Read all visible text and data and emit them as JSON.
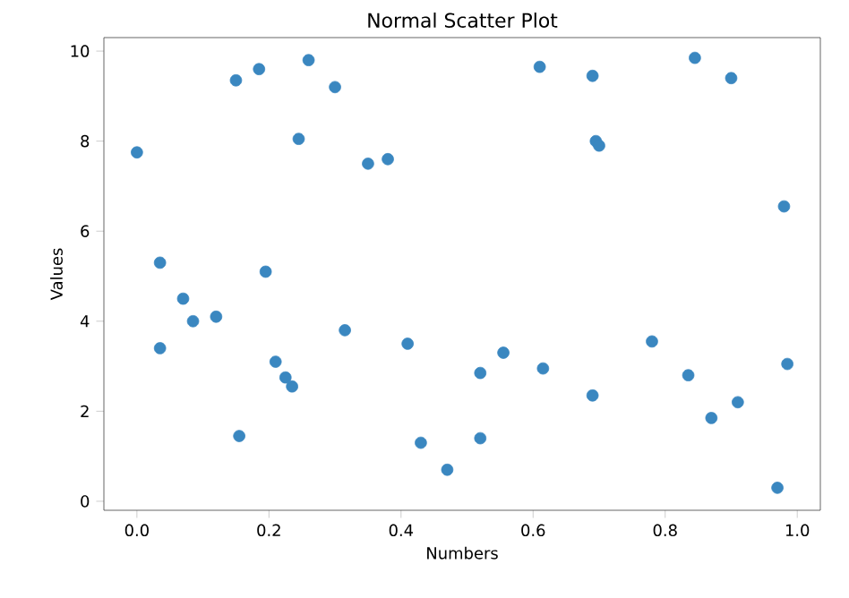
{
  "chart_data": {
    "type": "scatter",
    "title": "Normal Scatter Plot",
    "xlabel": "Numbers",
    "ylabel": "Values",
    "x": [
      0.0,
      0.035,
      0.035,
      0.07,
      0.085,
      0.12,
      0.15,
      0.155,
      0.185,
      0.195,
      0.21,
      0.225,
      0.235,
      0.245,
      0.26,
      0.3,
      0.315,
      0.35,
      0.38,
      0.41,
      0.43,
      0.47,
      0.52,
      0.52,
      0.555,
      0.61,
      0.615,
      0.69,
      0.69,
      0.695,
      0.7,
      0.78,
      0.835,
      0.845,
      0.87,
      0.9,
      0.91,
      0.97,
      0.98,
      0.985
    ],
    "values": [
      7.75,
      5.3,
      3.4,
      4.5,
      4.0,
      4.1,
      9.35,
      1.45,
      9.6,
      5.1,
      3.1,
      2.75,
      2.55,
      8.05,
      9.8,
      9.2,
      3.8,
      7.5,
      7.6,
      3.5,
      1.3,
      0.7,
      1.4,
      2.85,
      3.3,
      9.65,
      2.95,
      9.45,
      2.35,
      8.0,
      7.9,
      3.55,
      2.8,
      9.85,
      1.85,
      9.4,
      2.2,
      0.3,
      6.55,
      3.05
    ],
    "color": "#3a87c0",
    "xlim": [
      -0.05,
      1.035
    ],
    "ylim": [
      -0.2,
      10.3
    ],
    "xticks": [
      {
        "value": 0,
        "label": "0.0"
      },
      {
        "value": 0.2,
        "label": "0.2"
      },
      {
        "value": 0.4,
        "label": "0.4"
      },
      {
        "value": 0.6,
        "label": "0.6"
      },
      {
        "value": 0.8,
        "label": "0.8"
      },
      {
        "value": 1,
        "label": "1.0"
      }
    ],
    "yticks": [
      0,
      2,
      4,
      6,
      8,
      10
    ]
  }
}
